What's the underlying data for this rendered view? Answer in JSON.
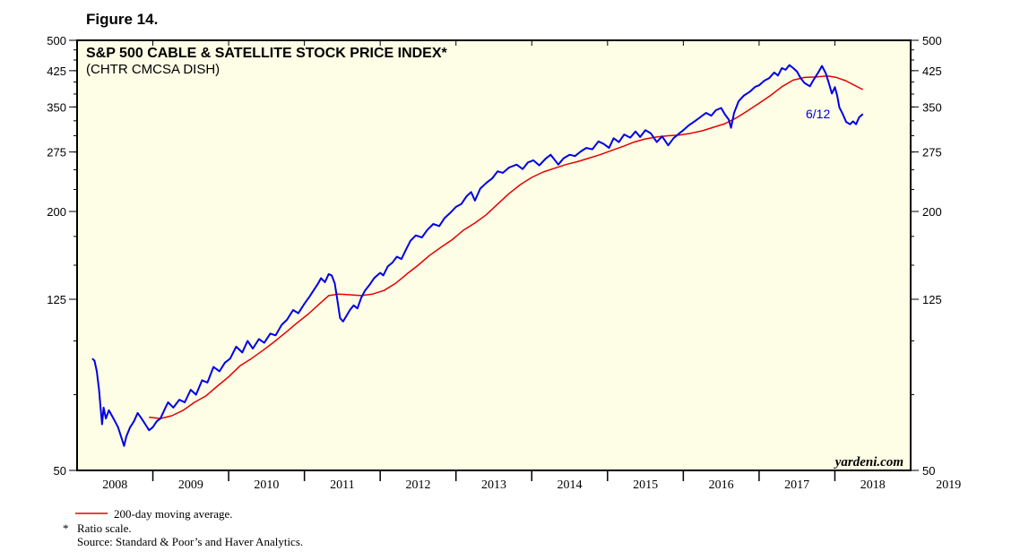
{
  "figure_label": "Figure 14.",
  "chart_data": {
    "type": "line",
    "title": "S&P 500 CABLE & SATELLITE STOCK PRICE INDEX*",
    "subtitle": "(CHTR CMCSA DISH)",
    "scale": "log",
    "ylim": [
      50,
      500
    ],
    "y_ticks": [
      50,
      125,
      200,
      275,
      350,
      425,
      500
    ],
    "x_range": [
      2008.0,
      2019.0
    ],
    "x_tick_labels": [
      "2008",
      "2009",
      "2010",
      "2011",
      "2012",
      "2013",
      "2014",
      "2015",
      "2016",
      "2017",
      "2018",
      "2019"
    ],
    "last_value_label": "6/12",
    "watermark": "yardeni.com",
    "series": [
      {
        "name": "S&P 500 Cable & Satellite Stock Price Index",
        "color": "#0000e6",
        "points": [
          [
            2008.2,
            91
          ],
          [
            2008.23,
            90
          ],
          [
            2008.26,
            85
          ],
          [
            2008.29,
            77
          ],
          [
            2008.31,
            70
          ],
          [
            2008.33,
            64
          ],
          [
            2008.35,
            70
          ],
          [
            2008.38,
            66
          ],
          [
            2008.42,
            69
          ],
          [
            2008.46,
            67
          ],
          [
            2008.5,
            65
          ],
          [
            2008.54,
            63
          ],
          [
            2008.58,
            60
          ],
          [
            2008.62,
            57
          ],
          [
            2008.65,
            60
          ],
          [
            2008.7,
            63
          ],
          [
            2008.75,
            65
          ],
          [
            2008.8,
            68
          ],
          [
            2008.85,
            66
          ],
          [
            2008.9,
            64
          ],
          [
            2008.95,
            62
          ],
          [
            2009.0,
            63
          ],
          [
            2009.05,
            65
          ],
          [
            2009.1,
            66
          ],
          [
            2009.15,
            69
          ],
          [
            2009.2,
            72
          ],
          [
            2009.27,
            70
          ],
          [
            2009.35,
            73
          ],
          [
            2009.42,
            72
          ],
          [
            2009.5,
            77
          ],
          [
            2009.57,
            75
          ],
          [
            2009.65,
            81
          ],
          [
            2009.72,
            80
          ],
          [
            2009.8,
            87
          ],
          [
            2009.88,
            85
          ],
          [
            2009.95,
            89
          ],
          [
            2010.02,
            91
          ],
          [
            2010.1,
            97
          ],
          [
            2010.18,
            94
          ],
          [
            2010.25,
            100
          ],
          [
            2010.32,
            96
          ],
          [
            2010.4,
            101
          ],
          [
            2010.47,
            99
          ],
          [
            2010.55,
            104
          ],
          [
            2010.62,
            103
          ],
          [
            2010.7,
            109
          ],
          [
            2010.77,
            112
          ],
          [
            2010.85,
            118
          ],
          [
            2010.92,
            116
          ],
          [
            2011.0,
            122
          ],
          [
            2011.07,
            127
          ],
          [
            2011.12,
            131
          ],
          [
            2011.18,
            136
          ],
          [
            2011.22,
            140
          ],
          [
            2011.27,
            137
          ],
          [
            2011.32,
            143
          ],
          [
            2011.36,
            142
          ],
          [
            2011.4,
            136
          ],
          [
            2011.43,
            126
          ],
          [
            2011.47,
            113
          ],
          [
            2011.51,
            111
          ],
          [
            2011.55,
            114
          ],
          [
            2011.6,
            118
          ],
          [
            2011.65,
            121
          ],
          [
            2011.7,
            119
          ],
          [
            2011.75,
            126
          ],
          [
            2011.8,
            131
          ],
          [
            2011.86,
            135
          ],
          [
            2011.92,
            140
          ],
          [
            2012.0,
            144
          ],
          [
            2012.04,
            142
          ],
          [
            2012.1,
            149
          ],
          [
            2012.16,
            152
          ],
          [
            2012.22,
            157
          ],
          [
            2012.28,
            155
          ],
          [
            2012.34,
            163
          ],
          [
            2012.4,
            171
          ],
          [
            2012.47,
            176
          ],
          [
            2012.55,
            174
          ],
          [
            2012.62,
            181
          ],
          [
            2012.7,
            187
          ],
          [
            2012.78,
            185
          ],
          [
            2012.85,
            193
          ],
          [
            2012.93,
            199
          ],
          [
            2013.0,
            205
          ],
          [
            2013.07,
            208
          ],
          [
            2013.14,
            217
          ],
          [
            2013.2,
            222
          ],
          [
            2013.25,
            212
          ],
          [
            2013.32,
            226
          ],
          [
            2013.4,
            233
          ],
          [
            2013.48,
            239
          ],
          [
            2013.55,
            248
          ],
          [
            2013.62,
            246
          ],
          [
            2013.7,
            253
          ],
          [
            2013.8,
            257
          ],
          [
            2013.88,
            251
          ],
          [
            2013.95,
            260
          ],
          [
            2014.02,
            263
          ],
          [
            2014.1,
            256
          ],
          [
            2014.18,
            265
          ],
          [
            2014.25,
            271
          ],
          [
            2014.3,
            264
          ],
          [
            2014.35,
            257
          ],
          [
            2014.42,
            266
          ],
          [
            2014.5,
            271
          ],
          [
            2014.57,
            269
          ],
          [
            2014.65,
            276
          ],
          [
            2014.72,
            281
          ],
          [
            2014.8,
            279
          ],
          [
            2014.88,
            291
          ],
          [
            2014.95,
            287
          ],
          [
            2015.02,
            281
          ],
          [
            2015.08,
            296
          ],
          [
            2015.15,
            290
          ],
          [
            2015.22,
            302
          ],
          [
            2015.3,
            297
          ],
          [
            2015.37,
            307
          ],
          [
            2015.43,
            298
          ],
          [
            2015.5,
            309
          ],
          [
            2015.57,
            304
          ],
          [
            2015.65,
            290
          ],
          [
            2015.72,
            299
          ],
          [
            2015.8,
            285
          ],
          [
            2015.87,
            296
          ],
          [
            2015.95,
            304
          ],
          [
            2016.0,
            309
          ],
          [
            2016.07,
            317
          ],
          [
            2016.15,
            324
          ],
          [
            2016.22,
            331
          ],
          [
            2016.3,
            339
          ],
          [
            2016.37,
            334
          ],
          [
            2016.43,
            344
          ],
          [
            2016.5,
            348
          ],
          [
            2016.55,
            336
          ],
          [
            2016.6,
            327
          ],
          [
            2016.63,
            313
          ],
          [
            2016.67,
            339
          ],
          [
            2016.73,
            361
          ],
          [
            2016.8,
            372
          ],
          [
            2016.88,
            380
          ],
          [
            2016.95,
            390
          ],
          [
            2017.0,
            393
          ],
          [
            2017.07,
            403
          ],
          [
            2017.13,
            408
          ],
          [
            2017.2,
            421
          ],
          [
            2017.25,
            414
          ],
          [
            2017.3,
            431
          ],
          [
            2017.35,
            427
          ],
          [
            2017.4,
            438
          ],
          [
            2017.45,
            431
          ],
          [
            2017.5,
            423
          ],
          [
            2017.55,
            408
          ],
          [
            2017.6,
            398
          ],
          [
            2017.67,
            391
          ],
          [
            2017.72,
            405
          ],
          [
            2017.78,
            421
          ],
          [
            2017.83,
            436
          ],
          [
            2017.88,
            419
          ],
          [
            2017.92,
            398
          ],
          [
            2017.96,
            376
          ],
          [
            2018.0,
            389
          ],
          [
            2018.03,
            372
          ],
          [
            2018.06,
            349
          ],
          [
            2018.1,
            338
          ],
          [
            2018.15,
            323
          ],
          [
            2018.2,
            319
          ],
          [
            2018.24,
            324
          ],
          [
            2018.28,
            319
          ],
          [
            2018.32,
            331
          ],
          [
            2018.37,
            337
          ]
        ]
      },
      {
        "name": "200-day moving average",
        "color": "#e60000",
        "points": [
          [
            2008.95,
            66.5
          ],
          [
            2009.1,
            66.0
          ],
          [
            2009.25,
            67.0
          ],
          [
            2009.4,
            69.0
          ],
          [
            2009.55,
            72.0
          ],
          [
            2009.7,
            74.5
          ],
          [
            2009.85,
            78.5
          ],
          [
            2010.0,
            82.5
          ],
          [
            2010.15,
            87.5
          ],
          [
            2010.3,
            91.0
          ],
          [
            2010.45,
            95.0
          ],
          [
            2010.6,
            99.5
          ],
          [
            2010.75,
            104.5
          ],
          [
            2010.9,
            110.0
          ],
          [
            2011.05,
            115.5
          ],
          [
            2011.2,
            122.0
          ],
          [
            2011.32,
            127.5
          ],
          [
            2011.45,
            128.5
          ],
          [
            2011.6,
            128.0
          ],
          [
            2011.75,
            127.5
          ],
          [
            2011.9,
            128.5
          ],
          [
            2012.05,
            131.0
          ],
          [
            2012.2,
            136.0
          ],
          [
            2012.35,
            143.0
          ],
          [
            2012.5,
            150.0
          ],
          [
            2012.65,
            158.0
          ],
          [
            2012.8,
            165.0
          ],
          [
            2012.95,
            172.0
          ],
          [
            2013.1,
            181.0
          ],
          [
            2013.25,
            188.0
          ],
          [
            2013.4,
            196.5
          ],
          [
            2013.55,
            208.0
          ],
          [
            2013.7,
            220.0
          ],
          [
            2013.85,
            231.0
          ],
          [
            2014.0,
            240.0
          ],
          [
            2014.15,
            247.0
          ],
          [
            2014.3,
            252.0
          ],
          [
            2014.45,
            257.0
          ],
          [
            2014.6,
            261.0
          ],
          [
            2014.75,
            266.0
          ],
          [
            2014.9,
            271.0
          ],
          [
            2015.05,
            277.0
          ],
          [
            2015.2,
            283.0
          ],
          [
            2015.35,
            290.0
          ],
          [
            2015.5,
            295.0
          ],
          [
            2015.65,
            298.0
          ],
          [
            2015.8,
            300.0
          ],
          [
            2015.95,
            301.0
          ],
          [
            2016.1,
            304.0
          ],
          [
            2016.25,
            308.0
          ],
          [
            2016.4,
            314.0
          ],
          [
            2016.55,
            320.0
          ],
          [
            2016.7,
            330.0
          ],
          [
            2016.85,
            343.0
          ],
          [
            2017.0,
            357.0
          ],
          [
            2017.15,
            372.0
          ],
          [
            2017.3,
            390.0
          ],
          [
            2017.45,
            404.0
          ],
          [
            2017.6,
            410.0
          ],
          [
            2017.75,
            411.0
          ],
          [
            2017.9,
            413.0
          ],
          [
            2018.02,
            410.0
          ],
          [
            2018.14,
            403.0
          ],
          [
            2018.26,
            393.0
          ],
          [
            2018.37,
            384.0
          ]
        ]
      }
    ]
  },
  "footnotes": {
    "legend_label": "200-day moving average.",
    "ratio_marker": "*",
    "ratio_text": "Ratio scale.",
    "source": "Source: Standard & Poor’s and Haver Analytics."
  }
}
